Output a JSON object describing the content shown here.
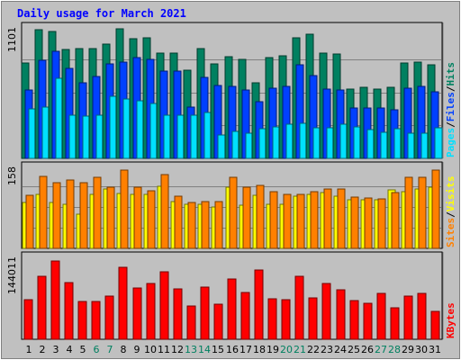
{
  "chart_data": {
    "type": "bar",
    "title": "Daily usage for March 2021",
    "days": [
      "1",
      "2",
      "3",
      "4",
      "5",
      "6",
      "7",
      "8",
      "9",
      "10",
      "11",
      "12",
      "13",
      "14",
      "15",
      "16",
      "17",
      "18",
      "19",
      "20",
      "21",
      "22",
      "23",
      "24",
      "25",
      "26",
      "27",
      "28",
      "29",
      "30",
      "31"
    ],
    "weekend_days": [
      "6",
      "7",
      "13",
      "14",
      "20",
      "21",
      "27",
      "28"
    ],
    "panels": [
      {
        "y_tick": "1101",
        "ylim": [
          0,
          1101
        ],
        "legend": [
          "Pages",
          "/",
          "Files",
          "/",
          "Hits"
        ],
        "legend_colors": [
          "#00e0ff",
          "#000000",
          "#0040ff",
          "#000000",
          "#008060"
        ],
        "series": [
          {
            "name": "Hits",
            "color": "#008060",
            "values": [
              796,
              1070,
              1055,
              908,
              915,
              917,
              954,
              1078,
              995,
              1000,
              880,
              880,
              734,
              917,
              786,
              848,
              826,
              627,
              839,
              851,
              1002,
              1031,
              875,
              870,
              575,
              589,
              579,
              588,
              796,
              800,
              779
            ]
          },
          {
            "name": "Files",
            "color": "#0040ff",
            "values": [
              571,
              816,
              892,
              750,
              629,
              685,
              785,
              805,
              841,
              825,
              726,
              727,
              430,
              676,
              608,
              600,
              570,
              474,
              584,
              602,
              780,
              692,
              575,
              570,
              418,
              423,
              417,
              408,
              586,
              602,
              554
            ]
          },
          {
            "name": "Pages",
            "color": "#00e0ff",
            "values": [
              412,
              427,
              664,
              363,
              350,
              356,
              520,
              498,
              478,
              458,
              359,
              357,
              356,
              382,
              193,
              224,
              207,
              245,
              264,
              282,
              290,
              252,
              254,
              285,
              261,
              240,
              214,
              245,
              212,
              212,
              254
            ]
          }
        ]
      },
      {
        "y_tick": "158",
        "ylim": [
          0,
          158
        ],
        "legend": [
          "Sites",
          "/",
          "Visits"
        ],
        "legend_colors": [
          "#ff8000",
          "#000000",
          "#ffff00"
        ],
        "series": [
          {
            "name": "Visits",
            "color": "#ffff00",
            "values": [
              87,
              103,
              88,
              85,
              65,
              103,
              113,
              105,
              103,
              103,
              118,
              90,
              84,
              84,
              79,
              116,
              83,
              102,
              84,
              84,
              99,
              103,
              107,
              99,
              93,
              93,
              92,
              111,
              108,
              113,
              117
            ]
          },
          {
            "name": "Sites",
            "color": "#ff8000",
            "values": [
              101,
              138,
              126,
              131,
              126,
              136,
              116,
              149,
              117,
              110,
              140,
              100,
              87,
              90,
              89,
              136,
              116,
              120,
              109,
              103,
              103,
              109,
              113,
              113,
              98,
              97,
              95,
              107,
              136,
              135,
              149
            ]
          }
        ]
      },
      {
        "y_tick": "144011",
        "ylim": [
          0,
          144011
        ],
        "legend": [
          "KBytes"
        ],
        "legend_colors": [
          "#ff0000"
        ],
        "series": [
          {
            "name": "KBytes",
            "color": "#ff0000",
            "values": [
              68000,
              108000,
              134000,
              97000,
              65000,
              65000,
              75000,
              124000,
              88000,
              96000,
              116000,
              86000,
              57000,
              90000,
              61000,
              104000,
              80000,
              120000,
              70000,
              68000,
              108000,
              71000,
              96000,
              85000,
              67000,
              62000,
              79000,
              54000,
              75000,
              79000,
              48000
            ]
          }
        ]
      }
    ]
  }
}
